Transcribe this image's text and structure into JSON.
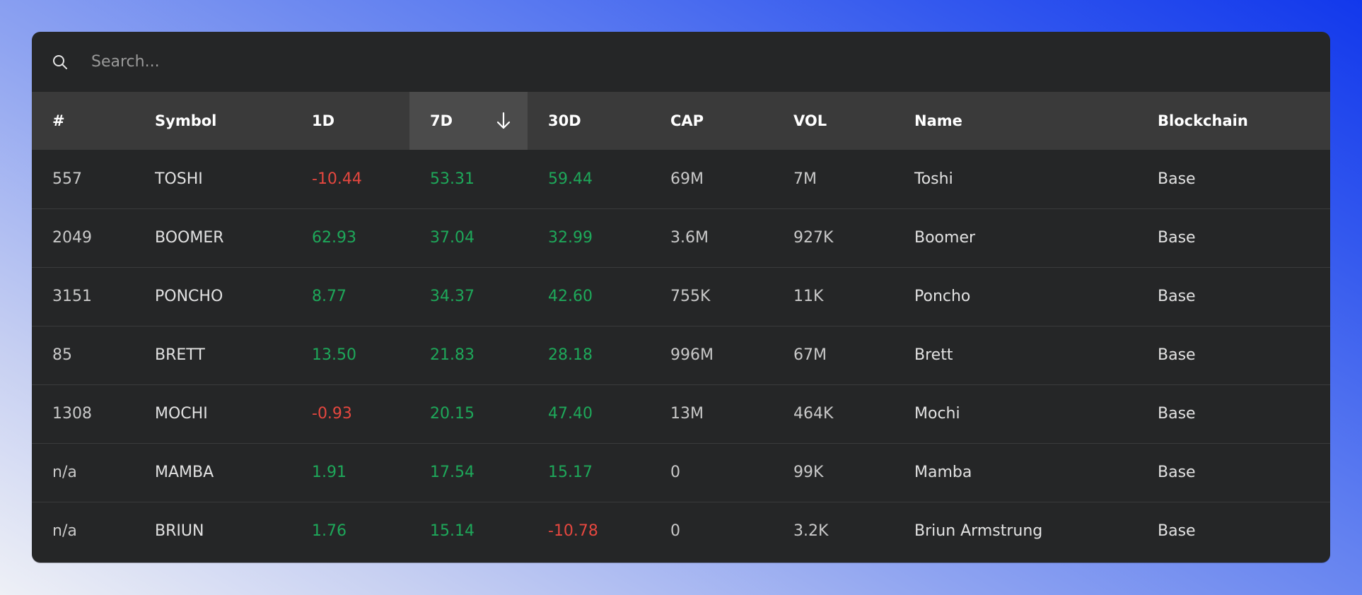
{
  "search": {
    "placeholder": "Search..."
  },
  "icons": {
    "search": "search-icon",
    "sort": "arrow-down-icon"
  },
  "colors": {
    "positive": "#1ea85a",
    "negative": "#e5473f",
    "header_bg": "#3a3a3a",
    "sorted_header_bg": "#4b4b4b",
    "card_bg": "#252627"
  },
  "table": {
    "sorted_column": "7D",
    "sort_direction": "descending",
    "columns": [
      "#",
      "Symbol",
      "1D",
      "7D",
      "30D",
      "CAP",
      "VOL",
      "Name",
      "Blockchain"
    ],
    "rows": [
      {
        "rank": "557",
        "symbol": "TOSHI",
        "d1": "-10.44",
        "d7": "53.31",
        "d30": "59.44",
        "cap": "69M",
        "vol": "7M",
        "name": "Toshi",
        "chain": "Base"
      },
      {
        "rank": "2049",
        "symbol": "BOOMER",
        "d1": "62.93",
        "d7": "37.04",
        "d30": "32.99",
        "cap": "3.6M",
        "vol": "927K",
        "name": "Boomer",
        "chain": "Base"
      },
      {
        "rank": "3151",
        "symbol": "PONCHO",
        "d1": "8.77",
        "d7": "34.37",
        "d30": "42.60",
        "cap": "755K",
        "vol": "11K",
        "name": "Poncho",
        "chain": "Base"
      },
      {
        "rank": "85",
        "symbol": "BRETT",
        "d1": "13.50",
        "d7": "21.83",
        "d30": "28.18",
        "cap": "996M",
        "vol": "67M",
        "name": "Brett",
        "chain": "Base"
      },
      {
        "rank": "1308",
        "symbol": "MOCHI",
        "d1": "-0.93",
        "d7": "20.15",
        "d30": "47.40",
        "cap": "13M",
        "vol": "464K",
        "name": "Mochi",
        "chain": "Base"
      },
      {
        "rank": "n/a",
        "symbol": "MAMBA",
        "d1": "1.91",
        "d7": "17.54",
        "d30": "15.17",
        "cap": "0",
        "vol": "99K",
        "name": "Mamba",
        "chain": "Base"
      },
      {
        "rank": "n/a",
        "symbol": "BRIUN",
        "d1": "1.76",
        "d7": "15.14",
        "d30": "-10.78",
        "cap": "0",
        "vol": "3.2K",
        "name": "Briun Armstrung",
        "chain": "Base"
      }
    ]
  }
}
